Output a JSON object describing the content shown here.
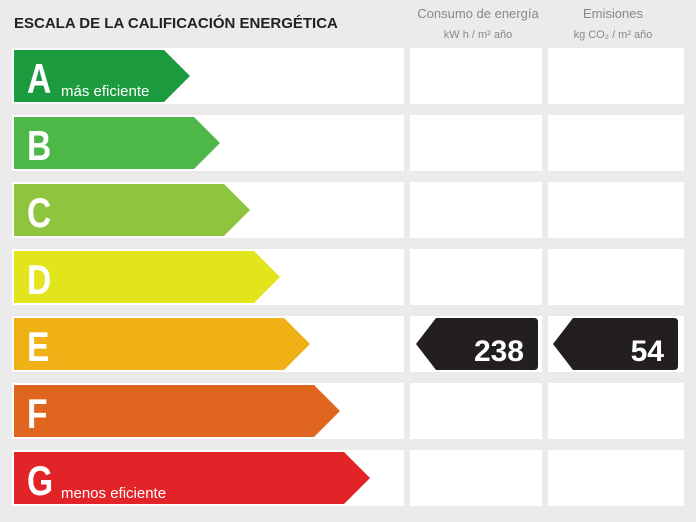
{
  "title": "ESCALA DE LA CALIFICACIÓN ENERGÉTICA",
  "columns": [
    {
      "name": "Consumo de energía",
      "unit": "kW h / m² año"
    },
    {
      "name": "Emisiones",
      "unit": "kg CO₂ / m² año"
    }
  ],
  "rows": [
    {
      "letter": "A",
      "note": "más eficiente",
      "color": "#1b9a3e"
    },
    {
      "letter": "B",
      "color": "#4db748"
    },
    {
      "letter": "C",
      "color": "#8fc43f"
    },
    {
      "letter": "D",
      "color": "#e3e51c"
    },
    {
      "letter": "E",
      "color": "#f0b116",
      "consumption": 238,
      "emissions": 54
    },
    {
      "letter": "F",
      "color": "#e0651f"
    },
    {
      "letter": "G",
      "note": "menos eficiente",
      "color": "#e22328"
    }
  ]
}
